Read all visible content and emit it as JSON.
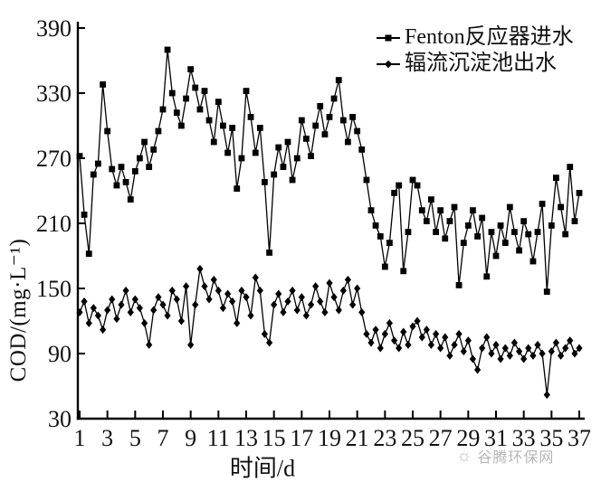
{
  "figure": {
    "watermark": {
      "logo_icon": "sun-logo-icon",
      "logo_glyph": "☼",
      "text": "谷腾环保网",
      "color": "#b6b6b6"
    }
  },
  "chart_data": {
    "type": "line",
    "title": "",
    "xlabel": "时间/d",
    "ylabel": "COD/(mg·L⁻¹)",
    "xlim": [
      1,
      37
    ],
    "ylim": [
      30,
      390
    ],
    "x_ticks": [
      1,
      3,
      5,
      7,
      9,
      11,
      13,
      15,
      17,
      19,
      21,
      23,
      25,
      27,
      29,
      31,
      33,
      35,
      37
    ],
    "y_ticks": [
      390,
      330,
      270,
      210,
      150,
      90,
      30
    ],
    "grid": false,
    "legend_position": "top-right-inside",
    "line_color": "#000000",
    "marker_color": "#000000",
    "x": [
      1,
      1.33,
      1.67,
      2,
      2.33,
      2.67,
      3,
      3.33,
      3.67,
      4,
      4.33,
      4.67,
      5,
      5.33,
      5.67,
      6,
      6.33,
      6.67,
      7,
      7.33,
      7.67,
      8,
      8.33,
      8.67,
      9,
      9.33,
      9.67,
      10,
      10.33,
      10.67,
      11,
      11.33,
      11.67,
      12,
      12.33,
      12.67,
      13,
      13.33,
      13.67,
      14,
      14.33,
      14.67,
      15,
      15.33,
      15.67,
      16,
      16.33,
      16.67,
      17,
      17.33,
      17.67,
      18,
      18.33,
      18.67,
      19,
      19.33,
      19.67,
      20,
      20.33,
      20.67,
      21,
      21.33,
      21.67,
      22,
      22.33,
      22.67,
      23,
      23.33,
      23.67,
      24,
      24.33,
      24.67,
      25,
      25.33,
      25.67,
      26,
      26.33,
      26.67,
      27,
      27.33,
      27.67,
      28,
      28.33,
      28.67,
      29,
      29.33,
      29.67,
      30,
      30.33,
      30.67,
      31,
      31.33,
      31.67,
      32,
      32.33,
      32.67,
      33,
      33.33,
      33.67,
      34,
      34.33,
      34.67,
      35,
      35.33,
      35.67,
      36,
      36.33,
      36.67,
      37
    ],
    "series": [
      {
        "name": "Fenton反应器进水",
        "marker": "square",
        "values": [
          272,
          218,
          182,
          255,
          265,
          338,
          295,
          260,
          245,
          262,
          248,
          232,
          258,
          270,
          285,
          262,
          278,
          295,
          315,
          370,
          330,
          312,
          300,
          325,
          352,
          335,
          315,
          332,
          305,
          285,
          322,
          300,
          275,
          298,
          242,
          270,
          332,
          308,
          275,
          298,
          248,
          183,
          255,
          280,
          262,
          285,
          250,
          270,
          305,
          288,
          272,
          300,
          318,
          292,
          308,
          325,
          342,
          305,
          285,
          308,
          295,
          278,
          250,
          222,
          208,
          198,
          170,
          192,
          238,
          245,
          166,
          202,
          250,
          245,
          222,
          212,
          232,
          202,
          222,
          196,
          212,
          225,
          153,
          192,
          208,
          222,
          198,
          215,
          161,
          202,
          180,
          208,
          192,
          225,
          202,
          185,
          212,
          200,
          175,
          202,
          228,
          147,
          208,
          252,
          225,
          200,
          262,
          212,
          238
        ]
      },
      {
        "name": "辐流沉淀池出水",
        "marker": "diamond",
        "values": [
          128,
          138,
          118,
          132,
          125,
          112,
          130,
          140,
          122,
          135,
          148,
          128,
          140,
          132,
          118,
          98,
          130,
          142,
          135,
          125,
          148,
          140,
          120,
          152,
          98,
          135,
          168,
          152,
          140,
          158,
          148,
          132,
          145,
          138,
          118,
          148,
          142,
          125,
          160,
          148,
          108,
          100,
          135,
          145,
          128,
          138,
          148,
          130,
          142,
          125,
          135,
          152,
          138,
          128,
          155,
          142,
          130,
          148,
          158,
          135,
          150,
          128,
          108,
          100,
          112,
          95,
          108,
          118,
          102,
          95,
          110,
          98,
          115,
          120,
          105,
          112,
          98,
          108,
          95,
          105,
          88,
          98,
          108,
          92,
          102,
          85,
          75,
          95,
          105,
          90,
          98,
          85,
          95,
          88,
          100,
          92,
          85,
          95,
          88,
          98,
          90,
          52,
          92,
          100,
          88,
          95,
          102,
          90,
          95
        ]
      }
    ]
  }
}
